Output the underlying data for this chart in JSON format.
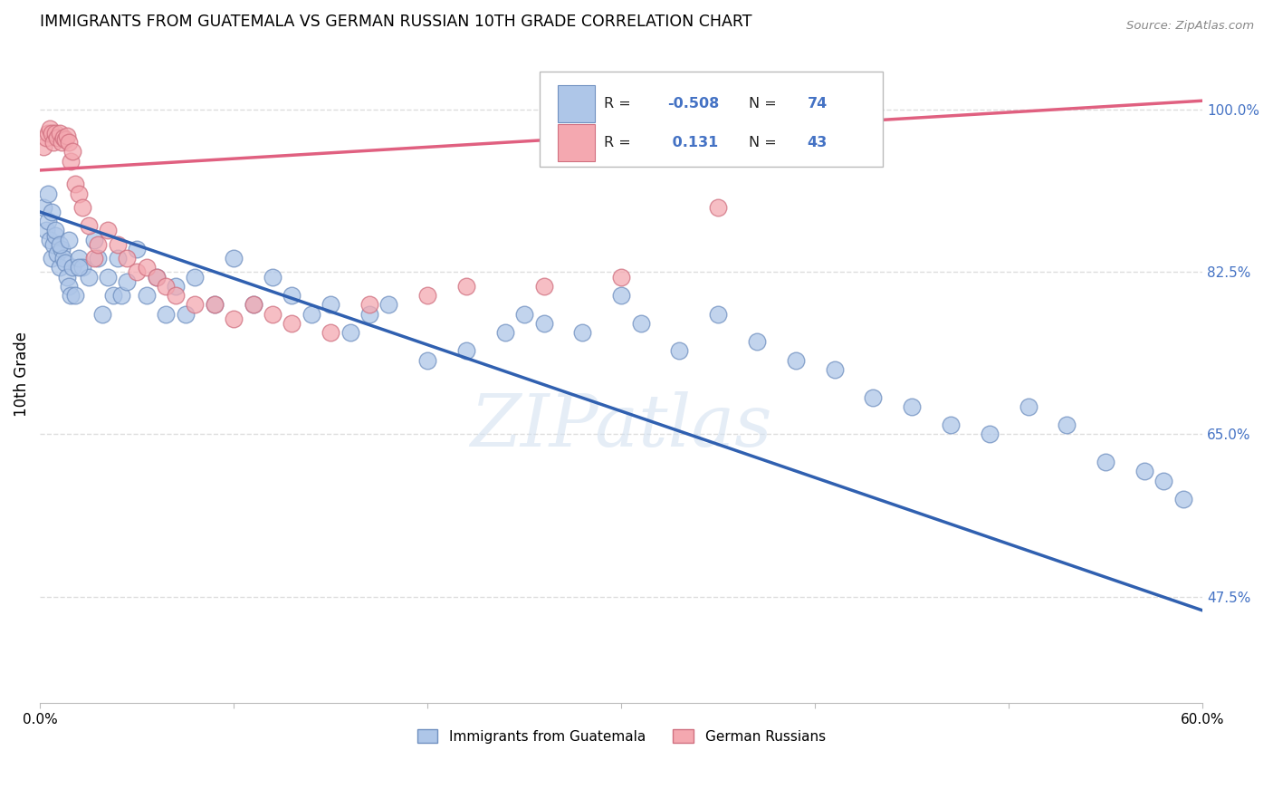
{
  "title": "IMMIGRANTS FROM GUATEMALA VS GERMAN RUSSIAN 10TH GRADE CORRELATION CHART",
  "source": "Source: ZipAtlas.com",
  "ylabel": "10th Grade",
  "ytick_labels": [
    "100.0%",
    "82.5%",
    "65.0%",
    "47.5%"
  ],
  "ytick_values": [
    1.0,
    0.825,
    0.65,
    0.475
  ],
  "xlim": [
    0.0,
    0.6
  ],
  "ylim": [
    0.36,
    1.07
  ],
  "r_blue": -0.508,
  "n_blue": 74,
  "r_pink": 0.131,
  "n_pink": 43,
  "blue_color": "#aec6e8",
  "pink_color": "#f4a8b0",
  "blue_line_color": "#3060b0",
  "pink_line_color": "#e06080",
  "legend_label_blue": "Immigrants from Guatemala",
  "legend_label_pink": "German Russians",
  "blue_scatter_x": [
    0.002,
    0.003,
    0.004,
    0.005,
    0.006,
    0.007,
    0.008,
    0.009,
    0.01,
    0.011,
    0.012,
    0.013,
    0.014,
    0.015,
    0.016,
    0.017,
    0.018,
    0.02,
    0.022,
    0.025,
    0.028,
    0.03,
    0.032,
    0.035,
    0.038,
    0.04,
    0.042,
    0.045,
    0.05,
    0.055,
    0.06,
    0.065,
    0.07,
    0.075,
    0.08,
    0.09,
    0.1,
    0.11,
    0.12,
    0.13,
    0.14,
    0.15,
    0.16,
    0.17,
    0.18,
    0.2,
    0.22,
    0.24,
    0.25,
    0.26,
    0.28,
    0.3,
    0.31,
    0.33,
    0.35,
    0.37,
    0.39,
    0.41,
    0.43,
    0.45,
    0.47,
    0.49,
    0.51,
    0.53,
    0.55,
    0.57,
    0.58,
    0.59,
    0.004,
    0.006,
    0.008,
    0.01,
    0.015,
    0.02
  ],
  "blue_scatter_y": [
    0.895,
    0.87,
    0.88,
    0.86,
    0.84,
    0.855,
    0.865,
    0.845,
    0.83,
    0.85,
    0.84,
    0.835,
    0.82,
    0.81,
    0.8,
    0.83,
    0.8,
    0.84,
    0.83,
    0.82,
    0.86,
    0.84,
    0.78,
    0.82,
    0.8,
    0.84,
    0.8,
    0.815,
    0.85,
    0.8,
    0.82,
    0.78,
    0.81,
    0.78,
    0.82,
    0.79,
    0.84,
    0.79,
    0.82,
    0.8,
    0.78,
    0.79,
    0.76,
    0.78,
    0.79,
    0.73,
    0.74,
    0.76,
    0.78,
    0.77,
    0.76,
    0.8,
    0.77,
    0.74,
    0.78,
    0.75,
    0.73,
    0.72,
    0.69,
    0.68,
    0.66,
    0.65,
    0.68,
    0.66,
    0.62,
    0.61,
    0.6,
    0.58,
    0.91,
    0.89,
    0.87,
    0.855,
    0.86,
    0.83
  ],
  "pink_scatter_x": [
    0.002,
    0.003,
    0.004,
    0.005,
    0.006,
    0.007,
    0.008,
    0.009,
    0.01,
    0.011,
    0.012,
    0.013,
    0.014,
    0.015,
    0.016,
    0.017,
    0.018,
    0.02,
    0.022,
    0.025,
    0.028,
    0.03,
    0.035,
    0.04,
    0.045,
    0.05,
    0.055,
    0.06,
    0.065,
    0.07,
    0.08,
    0.09,
    0.1,
    0.11,
    0.12,
    0.13,
    0.15,
    0.17,
    0.2,
    0.22,
    0.26,
    0.3,
    0.35
  ],
  "pink_scatter_y": [
    0.96,
    0.97,
    0.975,
    0.98,
    0.975,
    0.965,
    0.975,
    0.97,
    0.975,
    0.965,
    0.97,
    0.968,
    0.972,
    0.965,
    0.945,
    0.955,
    0.92,
    0.91,
    0.895,
    0.875,
    0.84,
    0.855,
    0.87,
    0.855,
    0.84,
    0.825,
    0.83,
    0.82,
    0.81,
    0.8,
    0.79,
    0.79,
    0.775,
    0.79,
    0.78,
    0.77,
    0.76,
    0.79,
    0.8,
    0.81,
    0.81,
    0.82,
    0.895
  ],
  "blue_trendline_x": [
    0.0,
    0.6
  ],
  "blue_trendline_y": [
    0.89,
    0.46
  ],
  "pink_trendline_x": [
    0.0,
    0.6
  ],
  "pink_trendline_y": [
    0.935,
    1.01
  ],
  "watermark": "ZIPatlas",
  "grid_color": "#dddddd",
  "grid_style": "--"
}
